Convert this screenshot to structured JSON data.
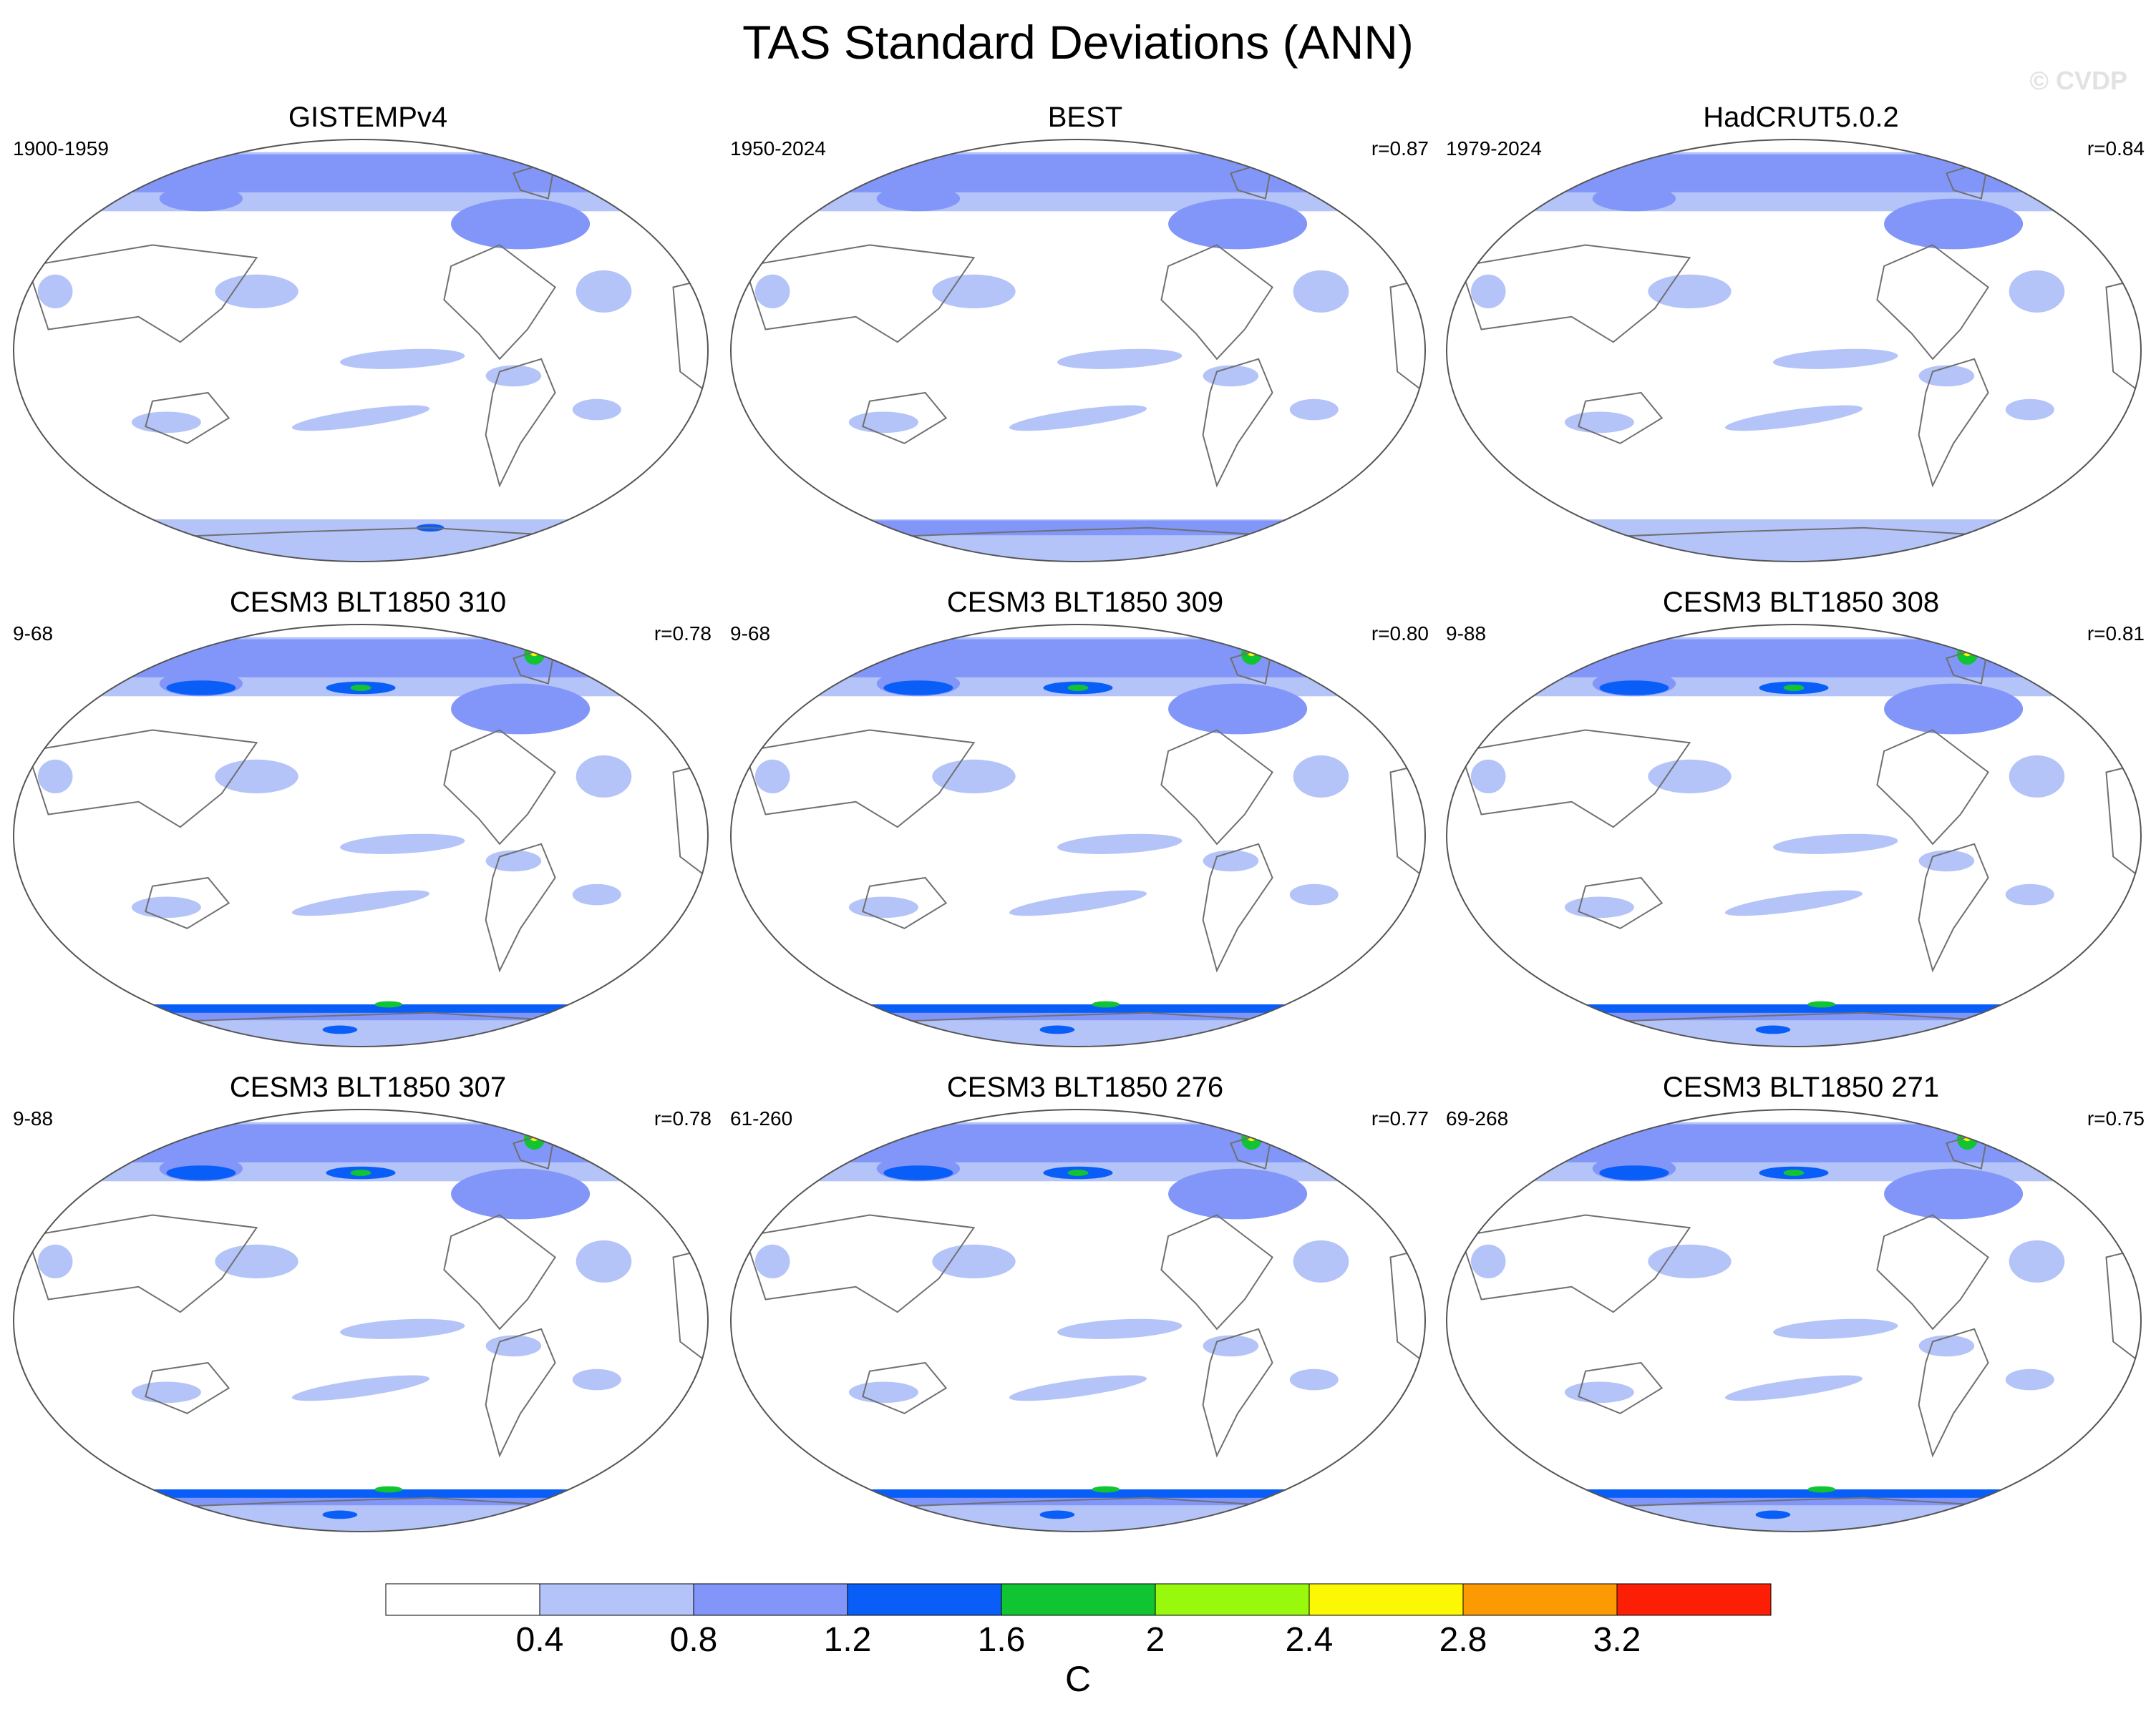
{
  "title": "TAS Standard Deviations (ANN)",
  "watermark": "© CVDP",
  "colors": {
    "land_outline": "#707070",
    "map_border": "#555555"
  },
  "chart_data": {
    "type": "heatmap",
    "variable": "TAS",
    "statistic": "Standard Deviations",
    "season": "ANN",
    "units": "C",
    "levels": [
      0.4,
      0.8,
      1.2,
      1.6,
      2,
      2.4,
      2.8,
      3.2
    ],
    "level_labels": [
      "0.4",
      "0.8",
      "1.2",
      "1.6",
      "2",
      "2.4",
      "2.8",
      "3.2"
    ],
    "fill_colors": [
      "#ffffff",
      "#b4c4f8",
      "#8196f8",
      "#0a5ef8",
      "#10c432",
      "#99f90d",
      "#fcf804",
      "#fc9a04",
      "#fc1f06"
    ],
    "panels": [
      {
        "name": "GISTEMPv4",
        "period": "1900-1959",
        "r": "",
        "intensity": 0.55,
        "base": "obs"
      },
      {
        "name": "BEST",
        "period": "1950-2024",
        "r": "r=0.87",
        "intensity": 0.7,
        "base": "obs"
      },
      {
        "name": "HadCRUT5.0.2",
        "period": "1979-2024",
        "r": "r=0.84",
        "intensity": 0.6,
        "base": "obs"
      },
      {
        "name": "CESM3 BLT1850 310",
        "period": "9-68",
        "r": "r=0.78",
        "intensity": 1.0,
        "base": "model"
      },
      {
        "name": "CESM3 BLT1850 309",
        "period": "9-68",
        "r": "r=0.80",
        "intensity": 0.95,
        "base": "model"
      },
      {
        "name": "CESM3 BLT1850 308",
        "period": "9-88",
        "r": "r=0.81",
        "intensity": 0.95,
        "base": "model"
      },
      {
        "name": "CESM3 BLT1850 307",
        "period": "9-88",
        "r": "r=0.78",
        "intensity": 0.95,
        "base": "model"
      },
      {
        "name": "CESM3 BLT1850 276",
        "period": "61-260",
        "r": "r=0.77",
        "intensity": 0.95,
        "base": "model"
      },
      {
        "name": "CESM3 BLT1850 271",
        "period": "69-268",
        "r": "r=0.75",
        "intensity": 0.95,
        "base": "model"
      }
    ]
  }
}
